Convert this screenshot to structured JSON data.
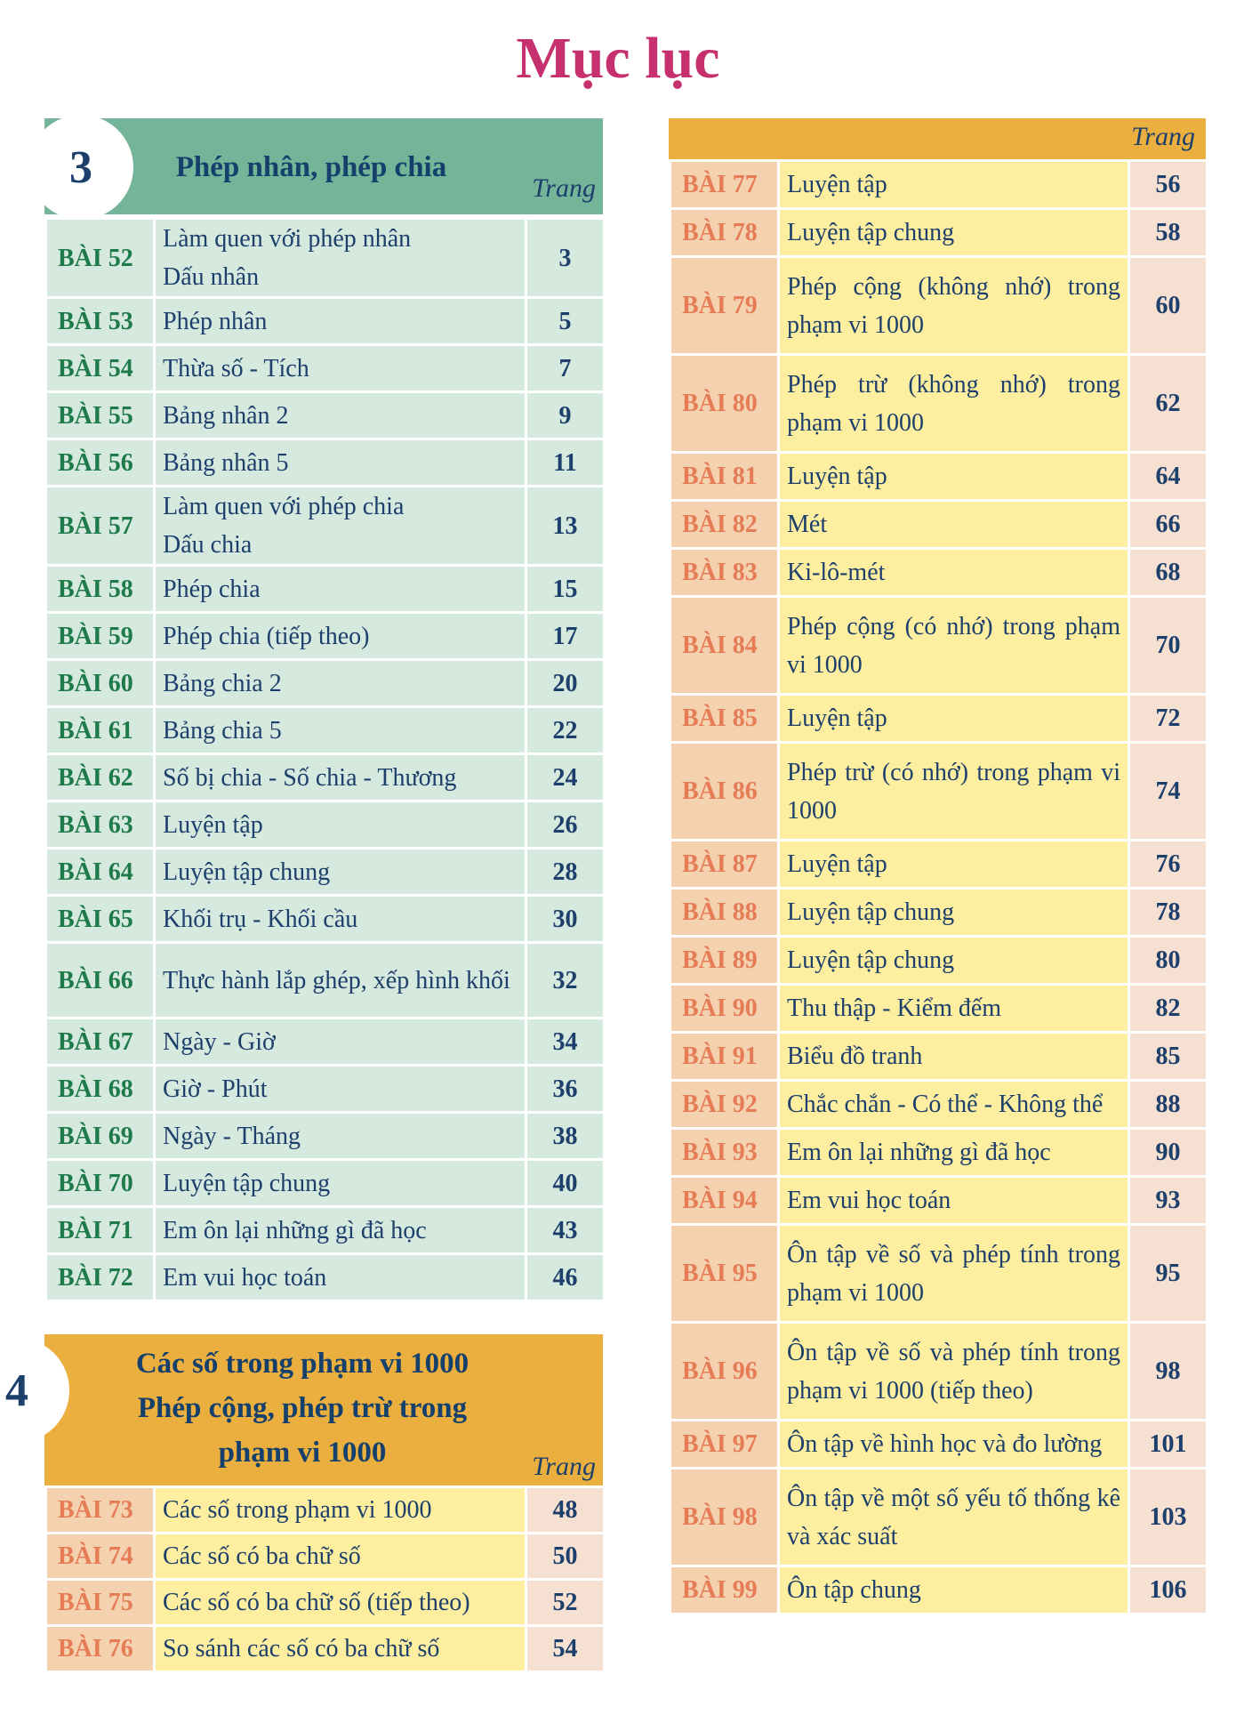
{
  "title": "Mục lục",
  "chapter3": {
    "number": "3",
    "title": "Phép nhân, phép chia",
    "page_label": "Trang",
    "lessons": [
      {
        "num": "BÀI 52",
        "title": "Làm quen với phép nhân",
        "title2": "Dấu nhân",
        "page": "3"
      },
      {
        "num": "BÀI 53",
        "title": "Phép nhân",
        "page": "5"
      },
      {
        "num": "BÀI 54",
        "title": "Thừa số - Tích",
        "page": "7"
      },
      {
        "num": "BÀI 55",
        "title": "Bảng nhân 2",
        "page": "9"
      },
      {
        "num": "BÀI 56",
        "title": "Bảng nhân 5",
        "page": "11"
      },
      {
        "num": "BÀI 57",
        "title": "Làm quen với phép chia",
        "title2": "Dấu chia",
        "page": "13"
      },
      {
        "num": "BÀI 58",
        "title": "Phép chia",
        "page": "15"
      },
      {
        "num": "BÀI 59",
        "title": "Phép chia (tiếp theo)",
        "page": "17"
      },
      {
        "num": "BÀI 60",
        "title": "Bảng chia 2",
        "page": "20"
      },
      {
        "num": "BÀI 61",
        "title": "Bảng chia 5",
        "page": "22"
      },
      {
        "num": "BÀI 62",
        "title": "Số bị chia - Số chia - Thương",
        "page": "24"
      },
      {
        "num": "BÀI 63",
        "title": "Luyện tập",
        "page": "26"
      },
      {
        "num": "BÀI 64",
        "title": "Luyện tập chung",
        "page": "28"
      },
      {
        "num": "BÀI 65",
        "title": "Khối trụ - Khối cầu",
        "page": "30"
      },
      {
        "num": "BÀI 66",
        "title": "Thực hành lắp ghép, xếp hình khối",
        "page": "32"
      },
      {
        "num": "BÀI 67",
        "title": "Ngày - Giờ",
        "page": "34"
      },
      {
        "num": "BÀI 68",
        "title": "Giờ - Phút",
        "page": "36"
      },
      {
        "num": "BÀI 69",
        "title": "Ngày - Tháng",
        "page": "38"
      },
      {
        "num": "BÀI 70",
        "title": "Luyện tập chung",
        "page": "40"
      },
      {
        "num": "BÀI 71",
        "title": "Em ôn lại những gì đã học",
        "page": "43"
      },
      {
        "num": "BÀI 72",
        "title": "Em vui học toán",
        "page": "46"
      }
    ]
  },
  "chapter4": {
    "number": "4",
    "title_lines": [
      "Các số trong phạm vi 1000",
      "Phép cộng, phép trừ trong",
      "phạm vi 1000"
    ],
    "page_label": "Trang",
    "lessons": [
      {
        "num": "BÀI 73",
        "title": "Các số trong phạm vi 1000",
        "page": "48"
      },
      {
        "num": "BÀI 74",
        "title": "Các số có ba chữ số",
        "page": "50"
      },
      {
        "num": "BÀI 75",
        "title": "Các số có ba chữ số (tiếp theo)",
        "page": "52"
      },
      {
        "num": "BÀI 76",
        "title": "So sánh các số có ba chữ số",
        "page": "54"
      }
    ]
  },
  "right_column": {
    "page_label": "Trang",
    "lessons": [
      {
        "num": "BÀI 77",
        "title": "Luyện tập",
        "page": "56"
      },
      {
        "num": "BÀI 78",
        "title": "Luyện tập chung",
        "page": "58"
      },
      {
        "num": "BÀI 79",
        "title": "Phép cộng (không nhớ) trong phạm vi 1000",
        "page": "60"
      },
      {
        "num": "BÀI 80",
        "title": "Phép trừ (không nhớ) trong phạm vi 1000",
        "page": "62"
      },
      {
        "num": "BÀI 81",
        "title": "Luyện tập",
        "page": "64"
      },
      {
        "num": "BÀI 82",
        "title": "Mét",
        "page": "66"
      },
      {
        "num": "BÀI 83",
        "title": "Ki-lô-mét",
        "page": "68"
      },
      {
        "num": "BÀI 84",
        "title": "Phép cộng (có nhớ) trong phạm vi 1000",
        "page": "70"
      },
      {
        "num": "BÀI 85",
        "title": "Luyện tập",
        "page": "72"
      },
      {
        "num": "BÀI 86",
        "title": "Phép trừ (có nhớ) trong phạm vi 1000",
        "page": "74"
      },
      {
        "num": "BÀI 87",
        "title": "Luyện tập",
        "page": "76"
      },
      {
        "num": "BÀI 88",
        "title": "Luyện tập chung",
        "page": "78"
      },
      {
        "num": "BÀI 89",
        "title": "Luyện tập chung",
        "page": "80"
      },
      {
        "num": "BÀI 90",
        "title": "Thu thập - Kiểm đếm",
        "page": "82"
      },
      {
        "num": "BÀI 91",
        "title": "Biểu đồ tranh",
        "page": "85"
      },
      {
        "num": "BÀI 92",
        "title": "Chắc chắn - Có thể - Không thể",
        "page": "88"
      },
      {
        "num": "BÀI 93",
        "title": "Em ôn lại những gì đã học",
        "page": "90"
      },
      {
        "num": "BÀI 94",
        "title": "Em vui học toán",
        "page": "93"
      },
      {
        "num": "BÀI 95",
        "title": "Ôn tập về số và phép tính trong phạm vi 1000",
        "page": "95"
      },
      {
        "num": "BÀI 96",
        "title": "Ôn tập về số và phép tính trong phạm vi 1000 (tiếp theo)",
        "page": "98"
      },
      {
        "num": "BÀI 97",
        "title": "Ôn tập về hình học và đo lường",
        "page": "101"
      },
      {
        "num": "BÀI 98",
        "title": "Ôn tập về một số yếu tố thống kê và xác suất",
        "page": "103"
      },
      {
        "num": "BÀI 99",
        "title": "Ôn tập chung",
        "page": "106"
      }
    ]
  }
}
